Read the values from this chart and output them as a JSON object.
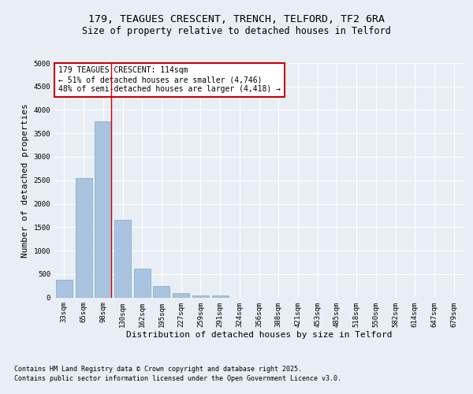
{
  "title_line1": "179, TEAGUES CRESCENT, TRENCH, TELFORD, TF2 6RA",
  "title_line2": "Size of property relative to detached houses in Telford",
  "xlabel": "Distribution of detached houses by size in Telford",
  "ylabel": "Number of detached properties",
  "categories": [
    "33sqm",
    "65sqm",
    "98sqm",
    "130sqm",
    "162sqm",
    "195sqm",
    "227sqm",
    "259sqm",
    "291sqm",
    "324sqm",
    "356sqm",
    "388sqm",
    "421sqm",
    "453sqm",
    "485sqm",
    "518sqm",
    "550sqm",
    "582sqm",
    "614sqm",
    "647sqm",
    "679sqm"
  ],
  "values": [
    380,
    2550,
    3760,
    1650,
    620,
    240,
    95,
    50,
    40,
    0,
    0,
    0,
    0,
    0,
    0,
    0,
    0,
    0,
    0,
    0,
    0
  ],
  "bar_color": "#a8c4e0",
  "bar_edge_color": "#7aaabf",
  "vline_x_index": 2,
  "vline_color": "#cc0000",
  "annotation_text": "179 TEAGUES CRESCENT: 114sqm\n← 51% of detached houses are smaller (4,746)\n48% of semi-detached houses are larger (4,418) →",
  "annotation_box_color": "#ffffff",
  "annotation_box_edge_color": "#cc0000",
  "ylim": [
    0,
    5000
  ],
  "yticks": [
    0,
    500,
    1000,
    1500,
    2000,
    2500,
    3000,
    3500,
    4000,
    4500,
    5000
  ],
  "background_color": "#e8eef4",
  "grid_color": "#ffffff",
  "footnote_line1": "Contains HM Land Registry data © Crown copyright and database right 2025.",
  "footnote_line2": "Contains public sector information licensed under the Open Government Licence v3.0.",
  "title_fontsize": 9.5,
  "subtitle_fontsize": 8.5,
  "axis_label_fontsize": 8,
  "tick_fontsize": 6.5,
  "annotation_fontsize": 7,
  "footnote_fontsize": 6
}
